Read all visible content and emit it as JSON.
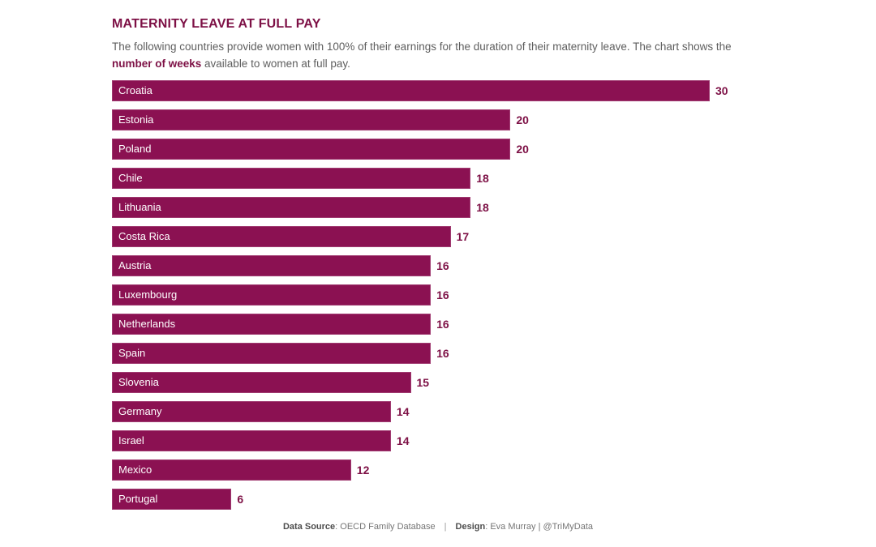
{
  "header": {
    "title": "MATERNITY LEAVE AT FULL PAY",
    "subtitle_part1": "The following countries provide women with 100% of their earnings for the duration of their maternity leave. The chart shows the ",
    "subtitle_bold": "number of weeks",
    "subtitle_part2": " available to women at full pay."
  },
  "chart_data": {
    "type": "bar",
    "orientation": "horizontal",
    "title": "MATERNITY LEAVE AT FULL PAY",
    "categories": [
      "Croatia",
      "Estonia",
      "Poland",
      "Chile",
      "Lithuania",
      "Costa Rica",
      "Austria",
      "Luxembourg",
      "Netherlands",
      "Spain",
      "Slovenia",
      "Germany",
      "Israel",
      "Mexico",
      "Portugal"
    ],
    "values": [
      30,
      20,
      20,
      18,
      18,
      17,
      16,
      16,
      16,
      16,
      15,
      14,
      14,
      12,
      6
    ],
    "unit": "weeks",
    "xmax": 30,
    "bar_color": "#8b1152",
    "value_label_color": "#7d1045",
    "category_labels_inside_bars": true,
    "grid": false,
    "legend": false,
    "axes_hidden": true
  },
  "footer": {
    "source_label": "Data Source",
    "source_value": ": OECD Family Database",
    "separator": "|",
    "design_label": "Design",
    "design_value": ": Eva Murray | @TriMyData"
  }
}
